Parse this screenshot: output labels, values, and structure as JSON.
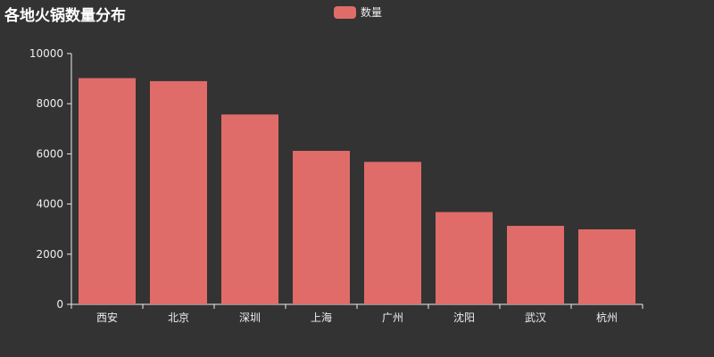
{
  "title": "各地火锅数量分布",
  "colors": {
    "background": "#333333",
    "bar": "#e06c69",
    "axis": "#eeeeee",
    "text": "#ffffff"
  },
  "chart_data": {
    "type": "bar",
    "title": "各地火锅数量分布",
    "xlabel": "",
    "ylabel": "",
    "categories": [
      "西安",
      "北京",
      "深圳",
      "上海",
      "广州",
      "沈阳",
      "武汉",
      "杭州"
    ],
    "series": [
      {
        "name": "数量",
        "values": [
          9020,
          8900,
          7570,
          6120,
          5680,
          3680,
          3130,
          2990
        ]
      }
    ],
    "ylim": [
      0,
      10000
    ],
    "yticks": [
      0,
      2000,
      4000,
      6000,
      8000,
      10000
    ],
    "grid": false,
    "legend_position": "top-center"
  }
}
